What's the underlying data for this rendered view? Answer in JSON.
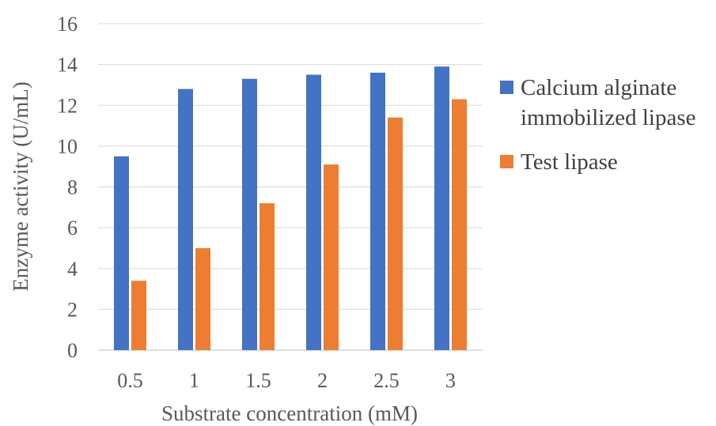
{
  "chart_data": {
    "type": "bar",
    "categories": [
      "0.5",
      "1",
      "1.5",
      "2",
      "2.5",
      "3"
    ],
    "series": [
      {
        "name": "Calcium alginate immobilized lipase",
        "values": [
          9.5,
          12.8,
          13.3,
          13.5,
          13.6,
          13.9
        ],
        "color": "#4472C4"
      },
      {
        "name": "Test lipase",
        "values": [
          3.4,
          5.0,
          7.2,
          9.1,
          11.4,
          12.3
        ],
        "color": "#ED7D31"
      }
    ],
    "title": "",
    "xlabel": "Substrate concentration (mM)",
    "ylabel": "Enzyme activity  (U/mL)",
    "ylim": [
      0,
      16
    ],
    "yticks": [
      0,
      2,
      4,
      6,
      8,
      10,
      12,
      14,
      16
    ],
    "grid": true,
    "legend_position": "right"
  },
  "legend": {
    "items": [
      {
        "label": "Calcium alginate immobilized lipase",
        "color": "#4472C4"
      },
      {
        "label": "Test lipase",
        "color": "#ED7D31"
      }
    ]
  }
}
